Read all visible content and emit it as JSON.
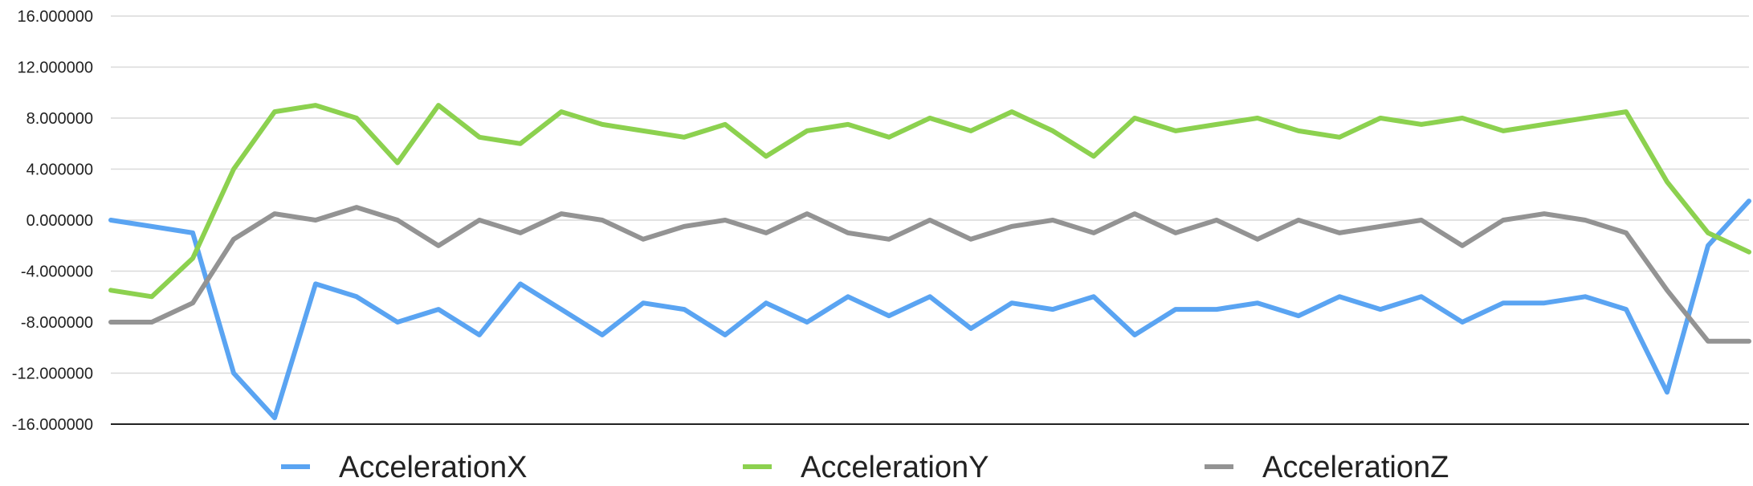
{
  "chart_data": {
    "type": "line",
    "title": "",
    "xlabel": "",
    "ylabel": "",
    "ylim": [
      -16,
      16
    ],
    "yticks": [
      16,
      12,
      8,
      4,
      0,
      -4,
      -8,
      -12,
      -16
    ],
    "ytick_labels": [
      "16.000000",
      "12.000000",
      "8.000000",
      "4.000000",
      "0.000000",
      "-4.000000",
      "-8.000000",
      "-12.000000",
      "-16.000000"
    ],
    "grid": true,
    "legend_position": "bottom",
    "x_count": 41,
    "series": [
      {
        "name": "AccelerationX",
        "color": "#5aa4f2",
        "values": [
          0.0,
          -0.5,
          -1.0,
          -12.0,
          -15.5,
          -5.0,
          -6.0,
          -8.0,
          -7.0,
          -9.0,
          -5.0,
          -7.0,
          -9.0,
          -6.5,
          -7.0,
          -9.0,
          -6.5,
          -8.0,
          -6.0,
          -7.5,
          -6.0,
          -8.5,
          -6.5,
          -7.0,
          -6.0,
          -9.0,
          -7.0,
          -7.0,
          -6.5,
          -7.5,
          -6.0,
          -7.0,
          -6.0,
          -8.0,
          -6.5,
          -6.5,
          -6.0,
          -7.0,
          -13.5,
          -2.0,
          1.5
        ]
      },
      {
        "name": "AccelerationY",
        "color": "#8cd14f",
        "values": [
          -5.5,
          -6.0,
          -3.0,
          4.0,
          8.5,
          9.0,
          8.0,
          4.5,
          9.0,
          6.5,
          6.0,
          8.5,
          7.5,
          7.0,
          6.5,
          7.5,
          5.0,
          7.0,
          7.5,
          6.5,
          8.0,
          7.0,
          8.5,
          7.0,
          5.0,
          8.0,
          7.0,
          7.5,
          8.0,
          7.0,
          6.5,
          8.0,
          7.5,
          8.0,
          7.0,
          7.5,
          8.0,
          8.5,
          3.0,
          -1.0,
          -2.5
        ]
      },
      {
        "name": "AccelerationZ",
        "color": "#939393",
        "values": [
          -8.0,
          -8.0,
          -6.5,
          -1.5,
          0.5,
          0.0,
          1.0,
          0.0,
          -2.0,
          0.0,
          -1.0,
          0.5,
          0.0,
          -1.5,
          -0.5,
          0.0,
          -1.0,
          0.5,
          -1.0,
          -1.5,
          0.0,
          -1.5,
          -0.5,
          0.0,
          -1.0,
          0.5,
          -1.0,
          0.0,
          -1.5,
          0.0,
          -1.0,
          -0.5,
          0.0,
          -2.0,
          0.0,
          0.5,
          0.0,
          -1.0,
          -5.5,
          -9.5,
          -9.5
        ]
      }
    ]
  }
}
